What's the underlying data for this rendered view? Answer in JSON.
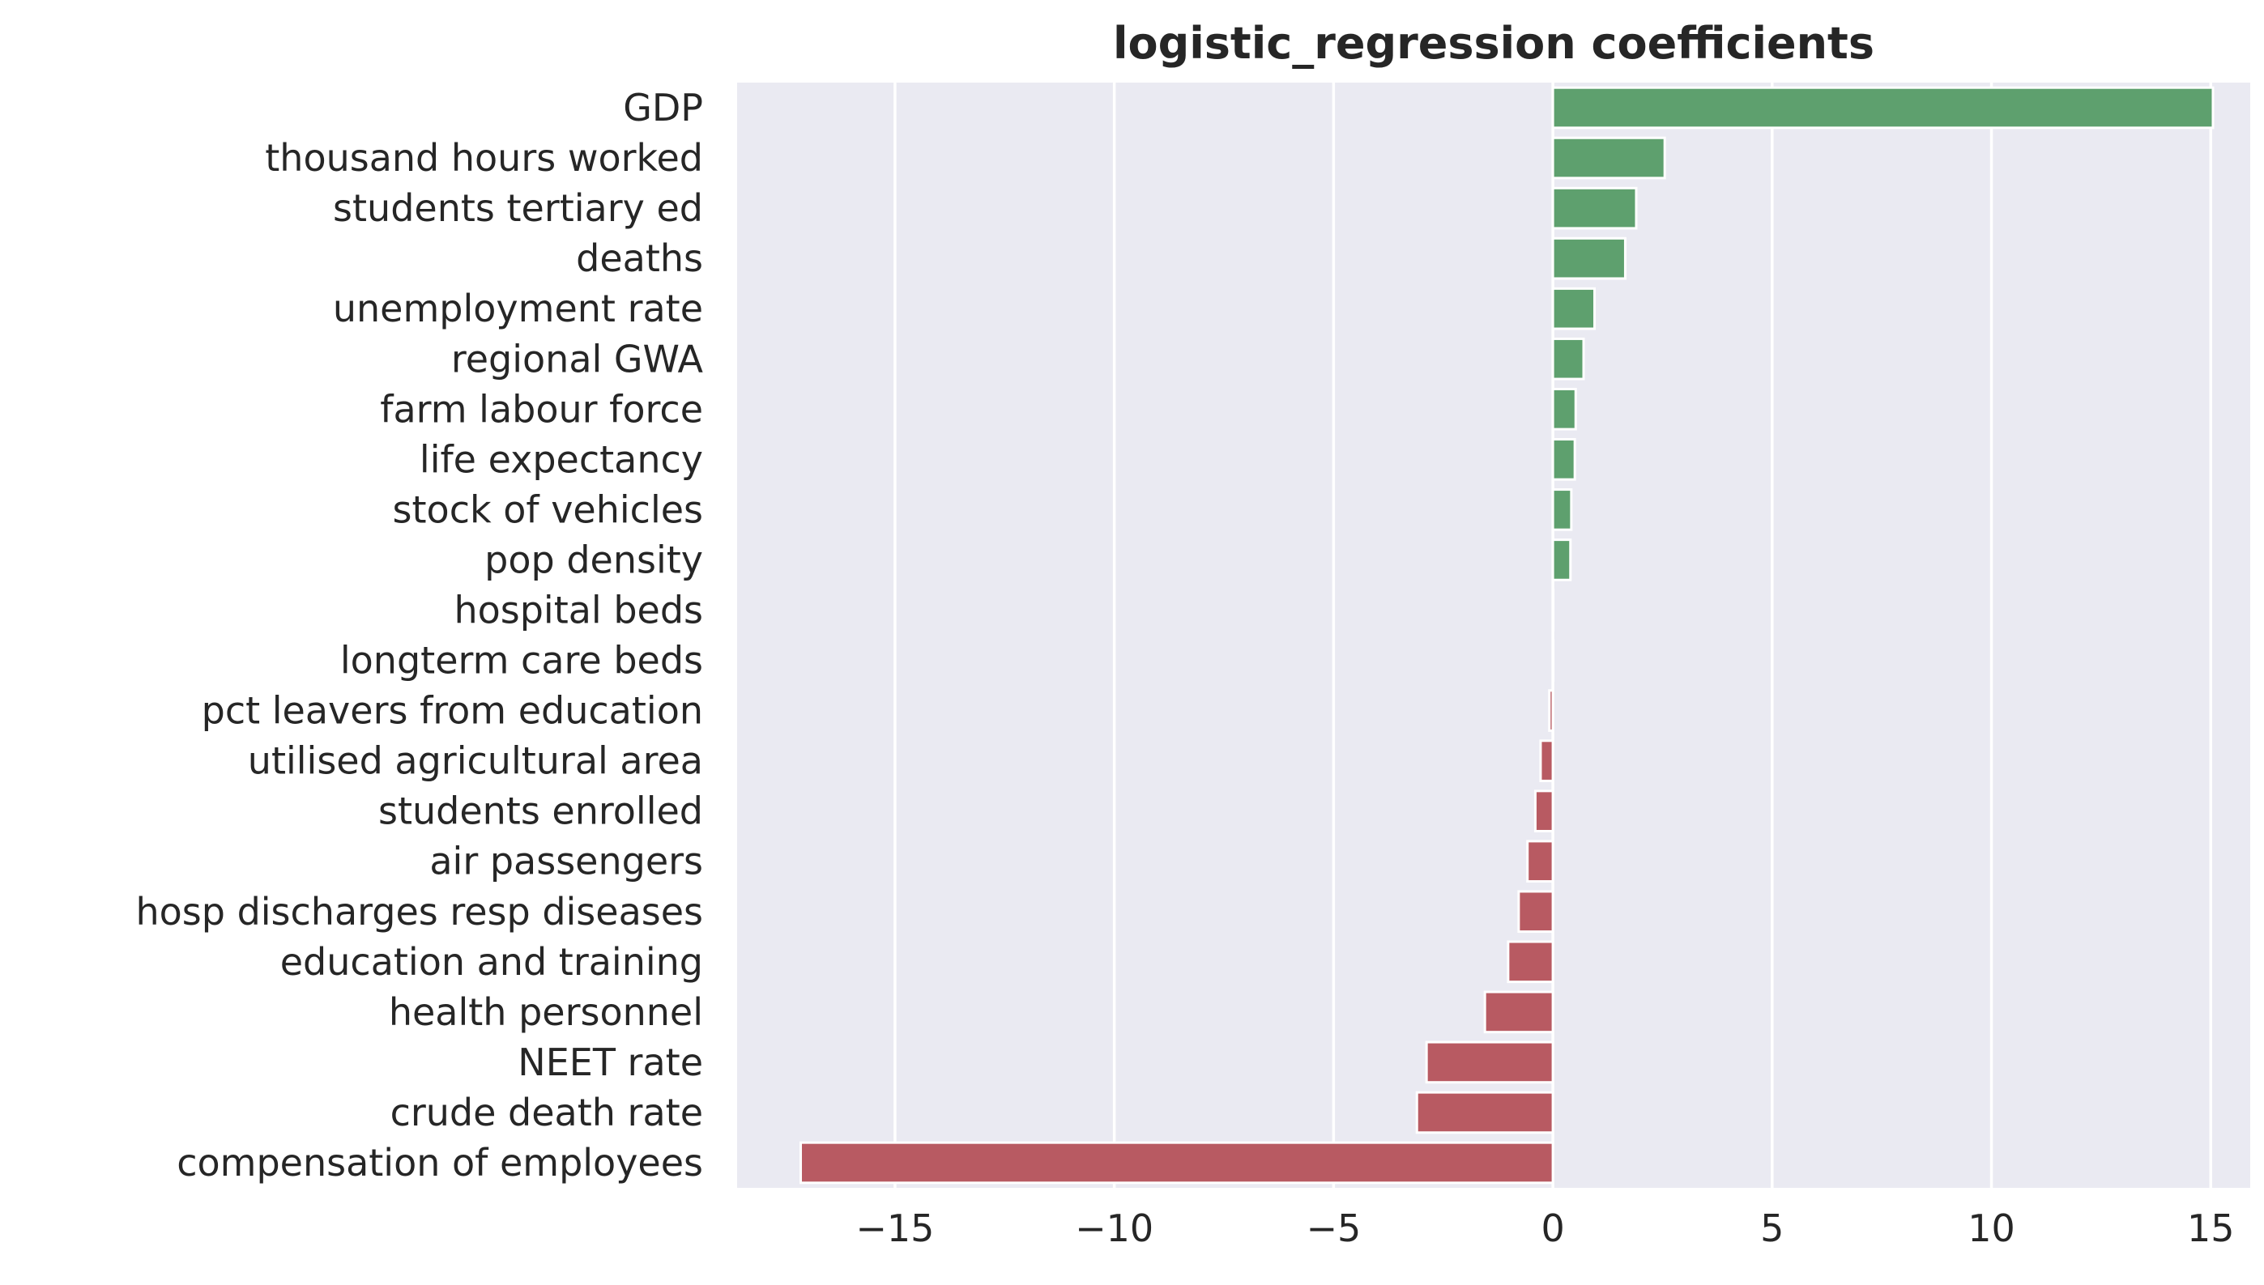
{
  "chart_data": {
    "type": "bar",
    "orientation": "horizontal",
    "title": "logistic_regression coefficients",
    "xlabel": "",
    "ylabel": "",
    "xlim": [
      -18.6,
      15.9
    ],
    "x_ticks": [
      -15,
      -10,
      -5,
      0,
      5,
      10,
      15
    ],
    "x_tick_labels": [
      "−15",
      "−10",
      "−5",
      "0",
      "5",
      "10",
      "15"
    ],
    "grid": true,
    "legend": "none",
    "categories": [
      "GDP",
      "thousand hours worked",
      "students tertiary ed",
      "deaths",
      "unemployment rate",
      "regional GWA",
      "farm labour force",
      "life expectancy",
      "stock of vehicles",
      "pop density",
      "hospital beds",
      "longterm care beds",
      "pct leavers from education",
      "utilised agricultural area",
      "students enrolled",
      "air passengers",
      "hosp discharges resp diseases",
      "education and training",
      "health personnel",
      "NEET rate",
      "crude death rate",
      "compensation of employees"
    ],
    "values": [
      15.05,
      2.55,
      1.9,
      1.65,
      0.95,
      0.7,
      0.52,
      0.5,
      0.42,
      0.4,
      0.0,
      0.0,
      -0.08,
      -0.28,
      -0.4,
      -0.58,
      -0.78,
      -1.02,
      -1.55,
      -2.88,
      -3.1,
      -17.15
    ],
    "colors": {
      "positive": "#5ea06e",
      "negative": "#b85a62",
      "background": "#eaeaf2",
      "grid": "#ffffff",
      "text": "#262626"
    }
  }
}
